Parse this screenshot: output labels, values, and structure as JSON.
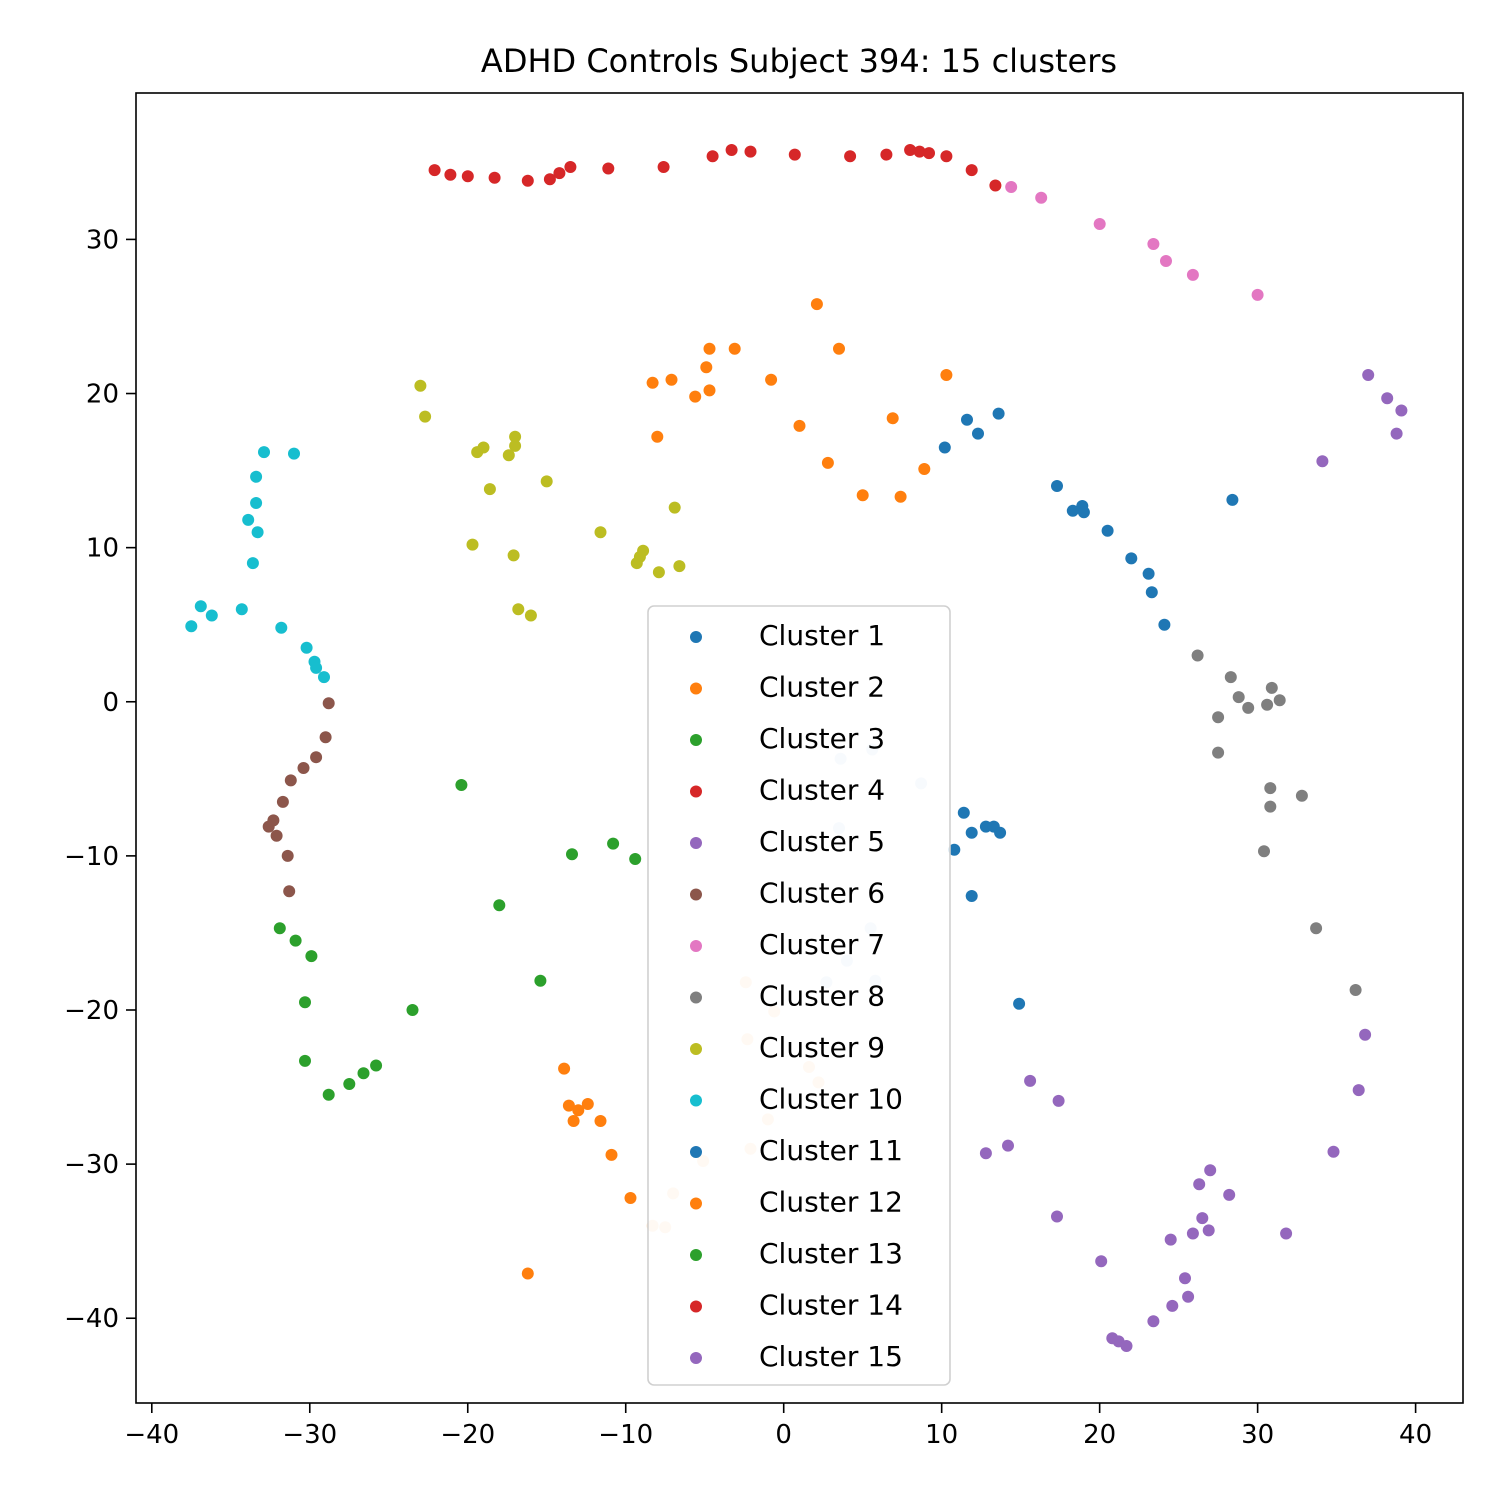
{
  "chart_data": {
    "type": "scatter",
    "title": "ADHD Controls Subject 394: 15 clusters",
    "xlabel": "",
    "ylabel": "",
    "xlim": [
      -41,
      43
    ],
    "ylim": [
      -45.5,
      39.5
    ],
    "xticks": [
      -40,
      -30,
      -20,
      -10,
      0,
      10,
      20,
      30,
      40
    ],
    "yticks": [
      -40,
      -30,
      -20,
      -10,
      0,
      10,
      20,
      30
    ],
    "xtick_labels": [
      "−40",
      "−30",
      "−20",
      "−10",
      "0",
      "10",
      "20",
      "30",
      "40"
    ],
    "ytick_labels": [
      "−40",
      "−30",
      "−20",
      "−10",
      "0",
      "10",
      "20",
      "30"
    ],
    "grid": false,
    "legend_position": "center-bottom",
    "series": [
      {
        "name": "Cluster 1",
        "color": "#1f77b4",
        "points": [
          [
            10.2,
            16.5
          ],
          [
            11.6,
            18.3
          ],
          [
            12.3,
            17.4
          ],
          [
            13.6,
            18.7
          ],
          [
            17.3,
            14.0
          ],
          [
            18.3,
            12.4
          ],
          [
            18.9,
            12.7
          ],
          [
            19.0,
            12.3
          ],
          [
            20.5,
            11.1
          ],
          [
            22.0,
            9.3
          ],
          [
            23.1,
            8.3
          ],
          [
            23.3,
            7.1
          ],
          [
            24.1,
            5.0
          ],
          [
            28.4,
            13.1
          ]
        ]
      },
      {
        "name": "Cluster 2",
        "color": "#ff7f0e",
        "points": [
          [
            2.1,
            25.8
          ],
          [
            3.5,
            22.9
          ],
          [
            -4.7,
            22.9
          ],
          [
            -3.1,
            22.9
          ],
          [
            -4.9,
            21.7
          ],
          [
            -7.1,
            20.9
          ],
          [
            -8.3,
            20.7
          ],
          [
            -0.8,
            20.9
          ],
          [
            10.3,
            21.2
          ],
          [
            -4.7,
            20.2
          ],
          [
            -5.6,
            19.8
          ],
          [
            -8.0,
            17.2
          ],
          [
            1.0,
            17.9
          ],
          [
            6.9,
            18.4
          ],
          [
            2.8,
            15.5
          ],
          [
            8.9,
            15.1
          ],
          [
            5.0,
            13.4
          ],
          [
            7.4,
            13.3
          ]
        ]
      },
      {
        "name": "Cluster 3",
        "color": "#2ca02c",
        "points": [
          [
            -20.4,
            -5.4
          ],
          [
            -13.4,
            -9.9
          ],
          [
            -10.8,
            -9.2
          ],
          [
            -9.4,
            -10.2
          ],
          [
            -18.0,
            -13.2
          ],
          [
            -15.4,
            -18.1
          ],
          [
            -31.9,
            -14.7
          ],
          [
            -30.9,
            -15.5
          ],
          [
            -29.9,
            -16.5
          ],
          [
            -30.3,
            -19.5
          ],
          [
            -23.5,
            -20.0
          ],
          [
            -30.3,
            -23.3
          ],
          [
            -25.8,
            -23.6
          ],
          [
            -26.6,
            -24.1
          ],
          [
            -27.5,
            -24.8
          ],
          [
            -28.8,
            -25.5
          ]
        ]
      },
      {
        "name": "Cluster 4",
        "color": "#d62728",
        "points": [
          [
            -22.1,
            34.5
          ],
          [
            -21.1,
            34.2
          ],
          [
            -20.0,
            34.1
          ],
          [
            -18.3,
            34.0
          ],
          [
            -16.2,
            33.8
          ],
          [
            -14.8,
            33.9
          ],
          [
            -14.2,
            34.3
          ],
          [
            -13.5,
            34.7
          ],
          [
            -11.1,
            34.6
          ],
          [
            -7.6,
            34.7
          ],
          [
            -4.5,
            35.4
          ],
          [
            -3.3,
            35.8
          ],
          [
            -2.1,
            35.7
          ],
          [
            0.7,
            35.5
          ],
          [
            4.2,
            35.4
          ],
          [
            6.5,
            35.5
          ],
          [
            8.0,
            35.8
          ],
          [
            8.6,
            35.7
          ],
          [
            9.2,
            35.6
          ],
          [
            10.3,
            35.4
          ],
          [
            11.9,
            34.5
          ],
          [
            13.4,
            33.5
          ]
        ]
      },
      {
        "name": "Cluster 5",
        "color": "#9467bd",
        "points": [
          [
            37.0,
            21.2
          ],
          [
            38.2,
            19.7
          ],
          [
            39.1,
            18.9
          ],
          [
            38.8,
            17.4
          ],
          [
            34.1,
            15.6
          ]
        ]
      },
      {
        "name": "Cluster 6",
        "color": "#8c564b",
        "points": [
          [
            -28.8,
            -0.1
          ],
          [
            -29.0,
            -2.3
          ],
          [
            -29.6,
            -3.6
          ],
          [
            -30.4,
            -4.3
          ],
          [
            -31.2,
            -5.1
          ],
          [
            -31.7,
            -6.5
          ],
          [
            -32.3,
            -7.7
          ],
          [
            -32.6,
            -8.1
          ],
          [
            -32.1,
            -8.7
          ],
          [
            -31.4,
            -10.0
          ],
          [
            -31.3,
            -12.3
          ]
        ]
      },
      {
        "name": "Cluster 7",
        "color": "#e377c2",
        "points": [
          [
            14.4,
            33.4
          ],
          [
            16.3,
            32.7
          ],
          [
            20.0,
            31.0
          ],
          [
            23.4,
            29.7
          ],
          [
            24.2,
            28.6
          ],
          [
            25.9,
            27.7
          ],
          [
            30.0,
            26.4
          ]
        ]
      },
      {
        "name": "Cluster 8",
        "color": "#7f7f7f",
        "points": [
          [
            26.2,
            3.0
          ],
          [
            28.3,
            1.6
          ],
          [
            28.8,
            0.3
          ],
          [
            29.4,
            -0.4
          ],
          [
            30.9,
            0.9
          ],
          [
            31.4,
            0.1
          ],
          [
            30.6,
            -0.2
          ],
          [
            27.5,
            -1.0
          ],
          [
            27.5,
            -3.3
          ],
          [
            30.8,
            -5.6
          ],
          [
            32.8,
            -6.1
          ],
          [
            30.8,
            -6.8
          ],
          [
            30.4,
            -9.7
          ],
          [
            33.7,
            -14.7
          ],
          [
            36.2,
            -18.7
          ]
        ]
      },
      {
        "name": "Cluster 9",
        "color": "#bcbd22",
        "points": [
          [
            -23.0,
            20.5
          ],
          [
            -22.7,
            18.5
          ],
          [
            -17.0,
            17.2
          ],
          [
            -17.0,
            16.6
          ],
          [
            -19.0,
            16.5
          ],
          [
            -19.4,
            16.2
          ],
          [
            -17.4,
            16.0
          ],
          [
            -15.0,
            14.3
          ],
          [
            -18.6,
            13.8
          ],
          [
            -6.9,
            12.6
          ],
          [
            -11.6,
            11.0
          ],
          [
            -19.7,
            10.2
          ],
          [
            -8.9,
            9.8
          ],
          [
            -9.1,
            9.4
          ],
          [
            -9.3,
            9.0
          ],
          [
            -17.1,
            9.5
          ],
          [
            -6.6,
            8.8
          ],
          [
            -7.9,
            8.4
          ],
          [
            -16.8,
            6.0
          ],
          [
            -16.0,
            5.6
          ]
        ]
      },
      {
        "name": "Cluster 10",
        "color": "#17becf",
        "points": [
          [
            -32.9,
            16.2
          ],
          [
            -31.0,
            16.1
          ],
          [
            -33.4,
            14.6
          ],
          [
            -33.4,
            12.9
          ],
          [
            -33.9,
            11.8
          ],
          [
            -33.3,
            11.0
          ],
          [
            -33.6,
            9.0
          ],
          [
            -36.9,
            6.2
          ],
          [
            -34.3,
            6.0
          ],
          [
            -36.2,
            5.6
          ],
          [
            -37.5,
            4.9
          ],
          [
            -31.8,
            4.8
          ],
          [
            -30.2,
            3.5
          ],
          [
            -29.7,
            2.6
          ],
          [
            -29.6,
            2.2
          ],
          [
            -29.1,
            1.6
          ]
        ]
      },
      {
        "name": "Cluster 11",
        "color": "#1f77b4",
        "points": [
          [
            11.4,
            -7.2
          ],
          [
            11.9,
            -8.5
          ],
          [
            12.8,
            -8.1
          ],
          [
            13.3,
            -8.1
          ],
          [
            13.7,
            -8.5
          ],
          [
            10.8,
            -9.6
          ],
          [
            11.9,
            -12.6
          ],
          [
            14.9,
            -19.6
          ]
        ]
      },
      {
        "name": "Cluster 12",
        "color": "#ff7f0e",
        "points": [
          [
            -13.9,
            -23.8
          ],
          [
            -13.6,
            -26.2
          ],
          [
            -12.4,
            -26.1
          ],
          [
            -13.0,
            -26.5
          ],
          [
            -13.3,
            -27.2
          ],
          [
            -11.6,
            -27.2
          ],
          [
            -10.9,
            -29.4
          ],
          [
            -9.7,
            -32.2
          ],
          [
            -16.2,
            -37.1
          ]
        ]
      },
      {
        "name": "Cluster 13",
        "color": "#2ca02c",
        "points": []
      },
      {
        "name": "Cluster 14",
        "color": "#d62728",
        "points": []
      },
      {
        "name": "Cluster 15",
        "color": "#9467bd",
        "points": [
          [
            15.6,
            -24.6
          ],
          [
            17.4,
            -25.9
          ],
          [
            14.2,
            -28.8
          ],
          [
            12.8,
            -29.3
          ],
          [
            27.0,
            -30.4
          ],
          [
            26.3,
            -31.3
          ],
          [
            28.2,
            -32.0
          ],
          [
            17.3,
            -33.4
          ],
          [
            26.5,
            -33.5
          ],
          [
            26.9,
            -34.3
          ],
          [
            25.9,
            -34.5
          ],
          [
            31.8,
            -34.5
          ],
          [
            24.5,
            -34.9
          ],
          [
            34.8,
            -29.2
          ],
          [
            36.4,
            -25.2
          ],
          [
            36.8,
            -21.6
          ],
          [
            20.1,
            -36.3
          ],
          [
            25.4,
            -37.4
          ],
          [
            25.6,
            -38.6
          ],
          [
            24.6,
            -39.2
          ],
          [
            23.4,
            -40.2
          ],
          [
            20.8,
            -41.3
          ],
          [
            21.2,
            -41.5
          ],
          [
            21.7,
            -41.8
          ]
        ]
      },
      {
        "name": "",
        "color": "#d6e6f4",
        "points": [
          [
            3.6,
            -3.7
          ],
          [
            5.6,
            -3.1
          ],
          [
            8.7,
            -5.3
          ],
          [
            3.5,
            -8.2
          ],
          [
            5.5,
            -14.7
          ],
          [
            4.0,
            -16.8
          ],
          [
            5.8,
            -18.1
          ],
          [
            2.7,
            -18.2
          ]
        ]
      },
      {
        "name": "",
        "color": "#ffe0c2",
        "points": [
          [
            -2.4,
            -18.2
          ],
          [
            -0.6,
            -20.1
          ],
          [
            -2.3,
            -21.9
          ],
          [
            1.6,
            -23.7
          ],
          [
            2.2,
            -24.7
          ],
          [
            -1.0,
            -27.1
          ],
          [
            -2.1,
            -29.0
          ],
          [
            -5.1,
            -29.8
          ],
          [
            -7.0,
            -31.9
          ],
          [
            -8.3,
            -34.0
          ],
          [
            -7.5,
            -34.1
          ]
        ]
      }
    ]
  }
}
